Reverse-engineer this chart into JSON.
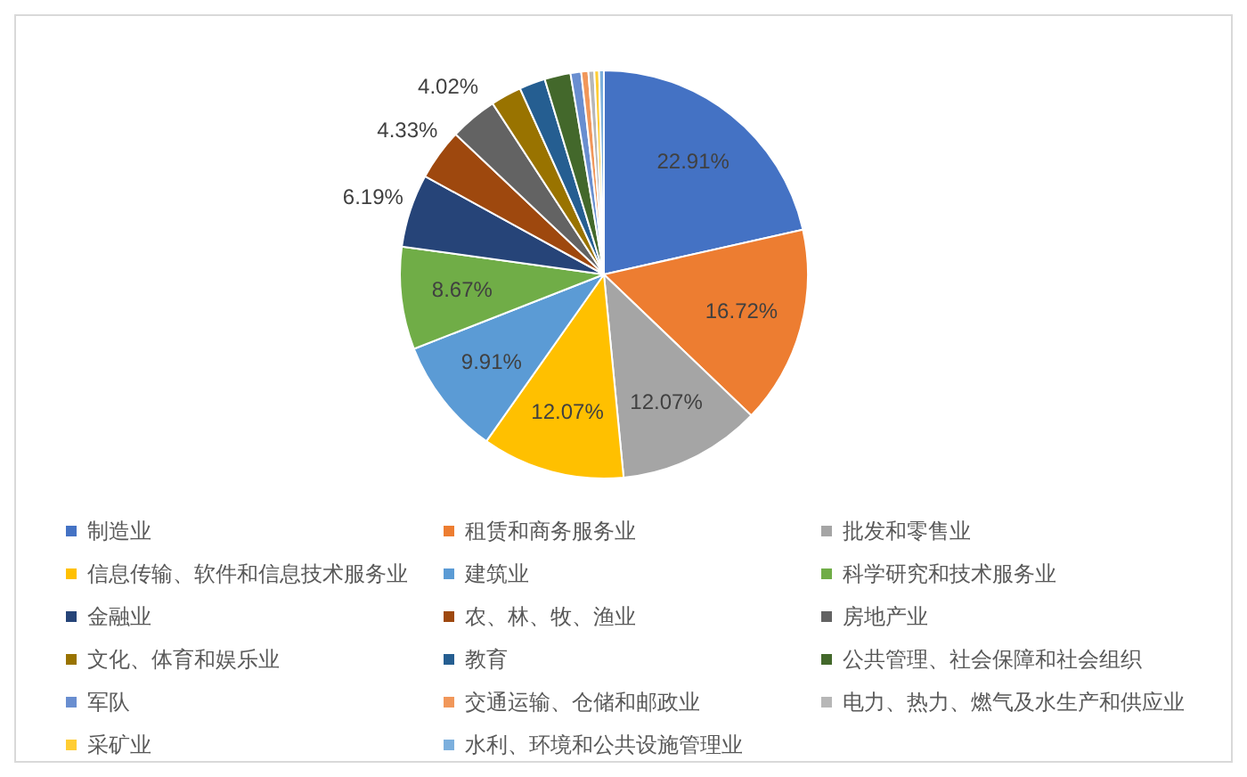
{
  "chart_data": {
    "type": "pie",
    "legend": "bottom",
    "categories": [
      "制造业",
      "租赁和商务服务业",
      "批发和零售业",
      "信息传输、软件和信息技术服务业",
      "建筑业",
      "科学研究和技术服务业",
      "金融业",
      "农、林、牧、渔业",
      "房地产业",
      "文化、体育和娱乐业",
      "教育",
      "公共管理、社会保障和社会组织",
      "军队",
      "交通运输、仓储和邮政业",
      "电力、热力、燃气及水生产和供应业",
      "采矿业",
      "水利、环境和公共设施管理业"
    ],
    "values": [
      22.91,
      16.72,
      12.07,
      12.07,
      9.91,
      8.67,
      6.19,
      4.33,
      4.02,
      2.6,
      2.2,
      2.2,
      0.9,
      0.6,
      0.5,
      0.4,
      0.4
    ],
    "value_labels": [
      "22.91%",
      "16.72%",
      "12.07%",
      "12.07%",
      "9.91%",
      "8.67%",
      "6.19%",
      "4.33%",
      "4.02%",
      null,
      null,
      null,
      null,
      null,
      null,
      null,
      null
    ],
    "colors": [
      "#4472c4",
      "#ed7d31",
      "#a5a5a5",
      "#ffc000",
      "#5b9bd5",
      "#70ad47",
      "#264478",
      "#9e480e",
      "#636363",
      "#997300",
      "#255e91",
      "#43682b",
      "#698ed0",
      "#f1975a",
      "#b7b7b7",
      "#ffcd33",
      "#7cafdd"
    ]
  }
}
